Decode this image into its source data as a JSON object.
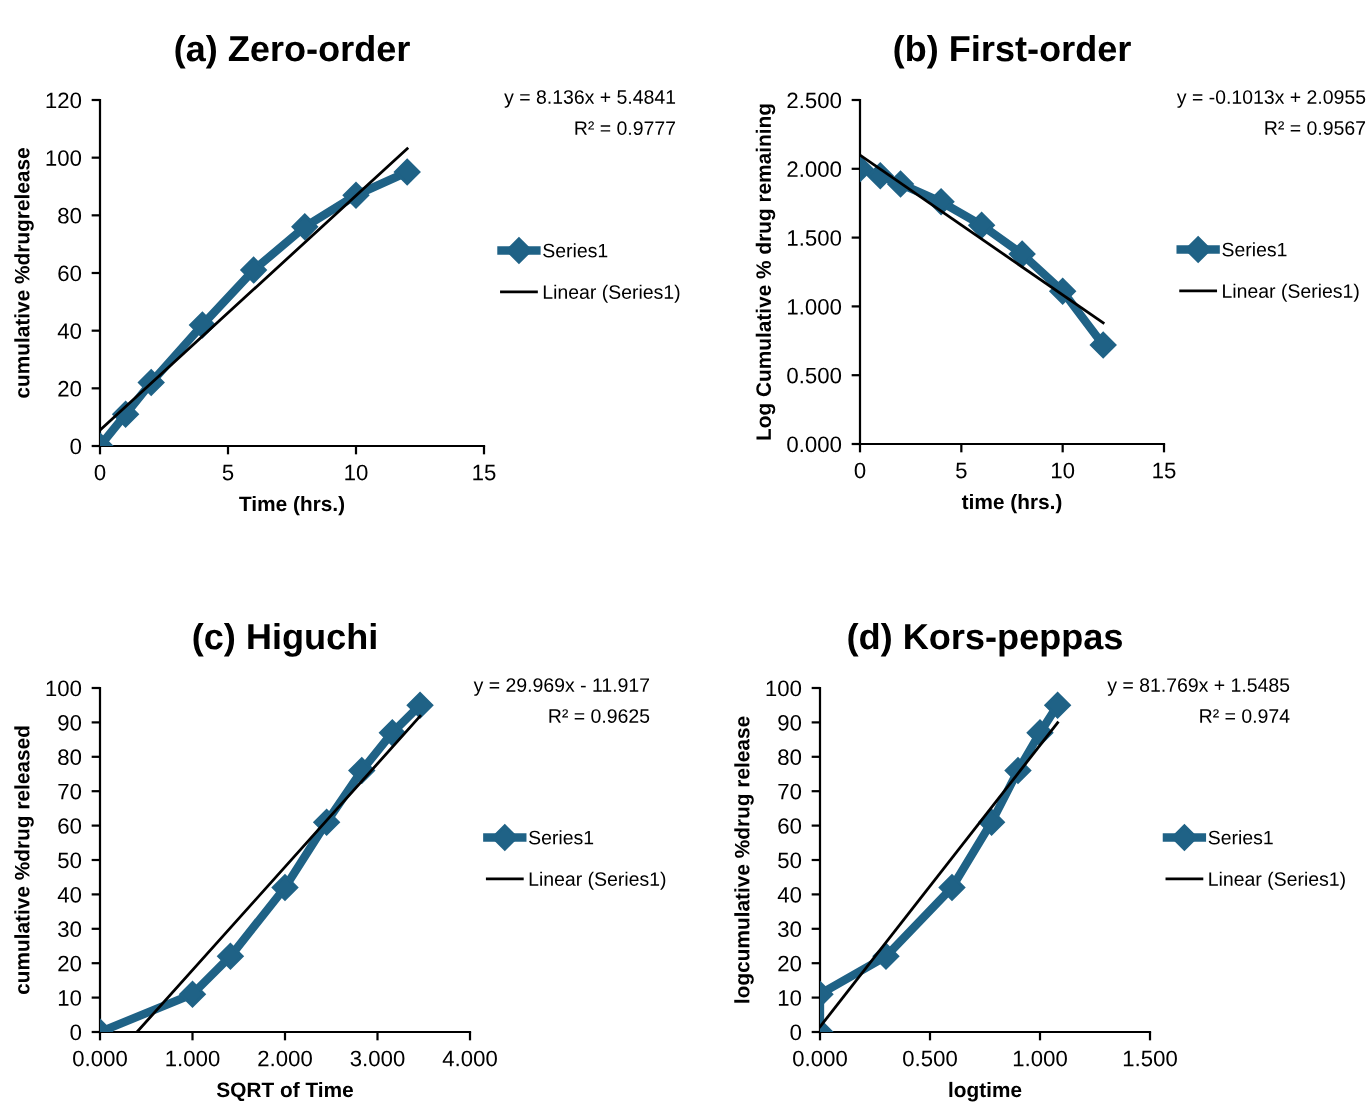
{
  "chart_data": [
    {
      "type": "line",
      "title": "(a) Zero-order",
      "xlabel": "Time (hrs.)",
      "ylabel": "cumulative %drugrelease",
      "annotations": [
        "y = 8.136x + 5.4841",
        "R² = 0.9777"
      ],
      "xlim": [
        0,
        15
      ],
      "xticks": [
        0,
        5,
        10,
        15
      ],
      "ylim": [
        0,
        120
      ],
      "yticks": [
        0,
        20,
        40,
        60,
        80,
        100,
        120
      ],
      "grid": false,
      "legend": "right",
      "series": [
        {
          "name": "Series1",
          "color": "#1f6286",
          "marker": "diamond",
          "x": [
            0,
            1,
            2,
            4,
            6,
            8,
            10,
            12
          ],
          "values": [
            0,
            11,
            22,
            42,
            61,
            76,
            87,
            95
          ]
        },
        {
          "name": "Linear (Series1)",
          "color": "#000000",
          "marker": "none",
          "x": [
            0,
            12
          ],
          "values": [
            5.5,
            103.1
          ]
        }
      ]
    },
    {
      "type": "line",
      "title": "(b) First-order",
      "xlabel": "time (hrs.)",
      "ylabel": "Log Cumulative % drug remaining",
      "annotations": [
        "y = -0.1013x + 2.0955",
        "R² = 0.9567"
      ],
      "xlim": [
        0,
        15
      ],
      "xticks": [
        0,
        5,
        10,
        15
      ],
      "ylim": [
        0,
        2.5
      ],
      "yticks": [
        {
          "value": 0,
          "label": "0.000"
        },
        {
          "value": 0.5,
          "label": "0.500"
        },
        {
          "value": 1,
          "label": "1.000"
        },
        {
          "value": 1.5,
          "label": "1.500"
        },
        {
          "value": 2,
          "label": "2.000"
        },
        {
          "value": 2.5,
          "label": "2.500"
        }
      ],
      "grid": false,
      "legend": "right",
      "series": [
        {
          "name": "Series1",
          "color": "#1f6286",
          "marker": "diamond",
          "x": [
            0,
            1,
            2,
            4,
            6,
            8,
            10,
            12
          ],
          "values": [
            2.0,
            1.95,
            1.89,
            1.76,
            1.59,
            1.38,
            1.11,
            0.72
          ]
        },
        {
          "name": "Linear (Series1)",
          "color": "#000000",
          "marker": "none",
          "x": [
            0,
            12
          ],
          "values": [
            2.1,
            0.88
          ]
        }
      ]
    },
    {
      "type": "line",
      "title": "(c) Higuchi",
      "xlabel": "SQRT of Time",
      "ylabel": "cumulative %drug released",
      "annotations": [
        "y = 29.969x - 11.917",
        "R² = 0.9625"
      ],
      "xlim": [
        0,
        4
      ],
      "xticks": [
        {
          "value": 0,
          "label": "0.000"
        },
        {
          "value": 1,
          "label": "1.000"
        },
        {
          "value": 2,
          "label": "2.000"
        },
        {
          "value": 3,
          "label": "3.000"
        },
        {
          "value": 4,
          "label": "4.000"
        }
      ],
      "ylim": [
        0,
        100
      ],
      "yticks": [
        0,
        10,
        20,
        30,
        40,
        50,
        60,
        70,
        80,
        90,
        100
      ],
      "grid": false,
      "legend": "right",
      "series": [
        {
          "name": "Series1",
          "color": "#1f6286",
          "marker": "diamond",
          "x": [
            0,
            1,
            1.41,
            2,
            2.45,
            2.83,
            3.16,
            3.46
          ],
          "values": [
            0,
            11,
            22,
            42,
            61,
            76,
            87,
            95
          ]
        },
        {
          "name": "Linear (Series1)",
          "color": "#000000",
          "marker": "none",
          "x": [
            0.4,
            3.46
          ],
          "values": [
            0,
            91.8
          ]
        }
      ]
    },
    {
      "type": "line",
      "title": "(d) Kors-peppas",
      "xlabel": "logtime",
      "ylabel": "logcumulative %drug release",
      "annotations": [
        "y = 81.769x + 1.5485",
        "R² = 0.974"
      ],
      "xlim": [
        0,
        1.5
      ],
      "xticks": [
        {
          "value": 0,
          "label": "0.000"
        },
        {
          "value": 0.5,
          "label": "0.500"
        },
        {
          "value": 1,
          "label": "1.000"
        },
        {
          "value": 1.5,
          "label": "1.500"
        }
      ],
      "ylim": [
        0,
        100
      ],
      "yticks": [
        0,
        10,
        20,
        30,
        40,
        50,
        60,
        70,
        80,
        90,
        100
      ],
      "grid": false,
      "legend": "right",
      "series": [
        {
          "name": "Series1",
          "color": "#1f6286",
          "marker": "diamond",
          "x": [
            0,
            0,
            0.3,
            0.6,
            0.78,
            0.9,
            1.0,
            1.08
          ],
          "values": [
            0,
            11,
            22,
            42,
            61,
            76,
            87,
            95
          ]
        },
        {
          "name": "Linear (Series1)",
          "color": "#000000",
          "marker": "none",
          "x": [
            0,
            1.08
          ],
          "values": [
            1.5,
            89.9
          ]
        }
      ]
    }
  ]
}
